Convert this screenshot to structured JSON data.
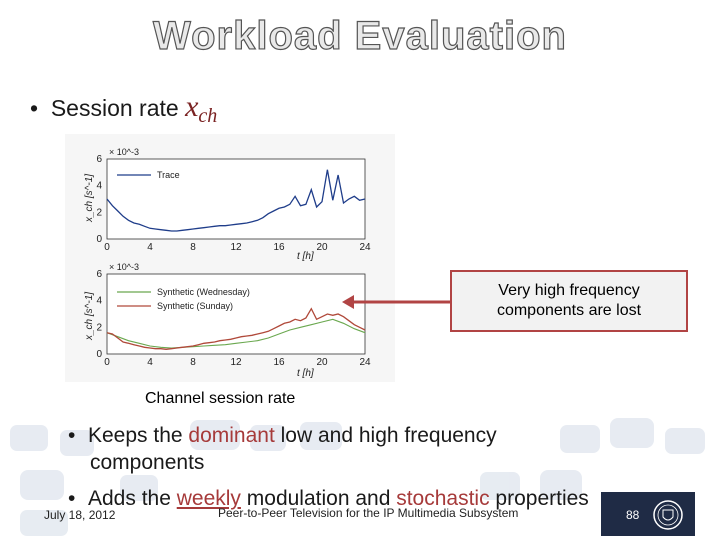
{
  "slide": {
    "title": "Workload Evaluation",
    "bullet1": {
      "prefix": "Session rate",
      "math_var": "x",
      "math_sub": "ch"
    },
    "callout": {
      "line1": "Very high frequency",
      "line2": "components are lost"
    },
    "caption": "Channel session rate",
    "bullets": [
      {
        "parts": [
          "Keeps the ",
          "dominant",
          " low and high frequency"
        ],
        "cont": "components"
      },
      {
        "parts": [
          "Adds the ",
          "weekly",
          " modulation and ",
          "stochastic",
          " properties"
        ]
      }
    ],
    "footer": {
      "date": "July 18, 2012",
      "center": "Peer-to-Peer Television for the IP Multimedia Subsystem",
      "page": "88"
    }
  },
  "chart_data": [
    {
      "type": "line",
      "title": "",
      "xlabel": "t [h]",
      "ylabel": "x_ch [s^-1]",
      "y_scale_label": "× 10^-3",
      "xlim": [
        0,
        24
      ],
      "ylim": [
        0,
        6
      ],
      "xticks": [
        "0",
        "4",
        "8",
        "12",
        "16",
        "20",
        "24"
      ],
      "yticks": [
        "0",
        "2",
        "4",
        "6"
      ],
      "legend": "top-left",
      "series": [
        {
          "name": "Trace",
          "color": "#1f3d8a",
          "x": [
            0,
            0.5,
            1,
            1.5,
            2,
            2.5,
            3,
            3.5,
            4,
            4.5,
            5,
            5.5,
            6,
            6.5,
            7,
            7.5,
            8,
            8.5,
            9,
            9.5,
            10,
            10.5,
            11,
            11.5,
            12,
            12.5,
            13,
            13.5,
            14,
            14.5,
            15,
            15.5,
            16,
            16.5,
            17,
            17.5,
            18,
            18.5,
            19,
            19.5,
            20,
            20.5,
            21,
            21.5,
            22,
            22.5,
            23,
            23.5,
            24
          ],
          "y": [
            3.0,
            2.5,
            2.1,
            1.7,
            1.4,
            1.2,
            1.1,
            0.95,
            0.8,
            0.75,
            0.7,
            0.65,
            0.6,
            0.6,
            0.65,
            0.7,
            0.75,
            0.8,
            0.85,
            0.9,
            0.95,
            1.0,
            1.0,
            1.05,
            1.1,
            1.15,
            1.2,
            1.3,
            1.4,
            1.6,
            1.9,
            2.1,
            2.3,
            2.4,
            2.6,
            3.2,
            2.5,
            2.6,
            3.7,
            2.4,
            2.8,
            5.2,
            2.9,
            4.8,
            2.7,
            3.0,
            3.2,
            2.9,
            3.0
          ]
        }
      ]
    },
    {
      "type": "line",
      "title": "",
      "xlabel": "t [h]",
      "ylabel": "x_ch [s^-1]",
      "y_scale_label": "× 10^-3",
      "xlim": [
        0,
        24
      ],
      "ylim": [
        0,
        6
      ],
      "xticks": [
        "0",
        "4",
        "8",
        "12",
        "16",
        "20",
        "24"
      ],
      "yticks": [
        "0",
        "2",
        "4",
        "6"
      ],
      "legend": "top-left",
      "series": [
        {
          "name": "Synthetic (Wednesday)",
          "color": "#6aa84f",
          "x": [
            0,
            1,
            2,
            3,
            4,
            5,
            6,
            7,
            8,
            9,
            10,
            11,
            12,
            13,
            14,
            15,
            16,
            17,
            18,
            19,
            20,
            21,
            22,
            23,
            24
          ],
          "y": [
            1.6,
            1.3,
            1.0,
            0.8,
            0.6,
            0.5,
            0.45,
            0.5,
            0.55,
            0.6,
            0.65,
            0.7,
            0.8,
            0.9,
            1.0,
            1.2,
            1.5,
            1.8,
            2.0,
            2.2,
            2.4,
            2.6,
            2.3,
            1.9,
            1.6
          ]
        },
        {
          "name": "Synthetic (Sunday)",
          "color": "#b0493a",
          "x": [
            0,
            0.5,
            1,
            1.5,
            2,
            2.5,
            3,
            3.5,
            4,
            4.5,
            5,
            5.5,
            6,
            6.5,
            7,
            7.5,
            8,
            8.5,
            9,
            9.5,
            10,
            10.5,
            11,
            11.5,
            12,
            12.5,
            13,
            13.5,
            14,
            14.5,
            15,
            15.5,
            16,
            16.5,
            17,
            17.5,
            18,
            18.5,
            19,
            19.5,
            20,
            20.5,
            21,
            21.5,
            22,
            22.5,
            23,
            23.5,
            24
          ],
          "y": [
            1.6,
            1.5,
            1.2,
            0.9,
            0.8,
            0.7,
            0.6,
            0.5,
            0.45,
            0.4,
            0.4,
            0.35,
            0.4,
            0.45,
            0.5,
            0.55,
            0.6,
            0.7,
            0.8,
            0.85,
            0.9,
            1.0,
            1.05,
            1.1,
            1.2,
            1.3,
            1.35,
            1.4,
            1.5,
            1.6,
            1.7,
            1.9,
            2.1,
            2.3,
            2.4,
            2.6,
            2.5,
            2.7,
            3.4,
            2.6,
            2.8,
            3.0,
            2.9,
            3.0,
            2.8,
            2.5,
            2.2,
            2.0,
            1.8
          ]
        }
      ]
    }
  ]
}
